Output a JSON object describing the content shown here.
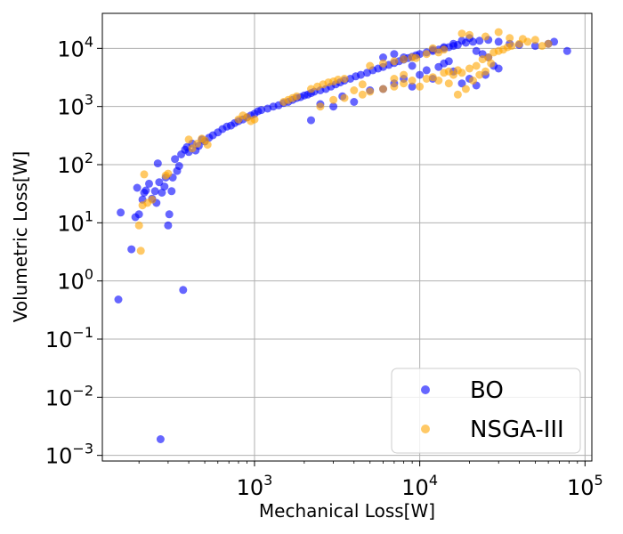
{
  "chart_data": {
    "type": "scatter",
    "xlabel": "Mechanical Loss[W]",
    "ylabel": "Volumetric Loss[W]",
    "xscale": "log",
    "yscale": "log",
    "xlim": [
      120,
      110000
    ],
    "ylim": [
      0.0008,
      40000
    ],
    "x_ticks": [
      1000,
      10000,
      100000
    ],
    "y_ticks": [
      0.001,
      0.01,
      0.1,
      1,
      10,
      100,
      1000,
      10000
    ],
    "grid": true,
    "legend_position": "lower-right",
    "series": [
      {
        "name": "BO",
        "color": "#0000ff",
        "points": [
          [
            150,
            0.48
          ],
          [
            155,
            15
          ],
          [
            180,
            3.5
          ],
          [
            190,
            12.5
          ],
          [
            195,
            40
          ],
          [
            200,
            14
          ],
          [
            210,
            25
          ],
          [
            215,
            33
          ],
          [
            220,
            36
          ],
          [
            230,
            47
          ],
          [
            240,
            26
          ],
          [
            250,
            35
          ],
          [
            255,
            22
          ],
          [
            260,
            105
          ],
          [
            265,
            50
          ],
          [
            270,
            0.0019
          ],
          [
            275,
            33
          ],
          [
            285,
            42
          ],
          [
            290,
            60
          ],
          [
            300,
            9
          ],
          [
            305,
            14
          ],
          [
            315,
            35
          ],
          [
            320,
            60
          ],
          [
            330,
            125
          ],
          [
            340,
            78
          ],
          [
            350,
            95
          ],
          [
            360,
            150
          ],
          [
            370,
            0.7
          ],
          [
            380,
            180
          ],
          [
            390,
            200
          ],
          [
            400,
            165
          ],
          [
            420,
            230
          ],
          [
            440,
            175
          ],
          [
            460,
            210
          ],
          [
            480,
            270
          ],
          [
            500,
            250
          ],
          [
            530,
            290
          ],
          [
            560,
            320
          ],
          [
            600,
            360
          ],
          [
            640,
            410
          ],
          [
            680,
            450
          ],
          [
            720,
            470
          ],
          [
            760,
            520
          ],
          [
            800,
            560
          ],
          [
            850,
            600
          ],
          [
            900,
            650
          ],
          [
            950,
            700
          ],
          [
            1000,
            750
          ],
          [
            1050,
            830
          ],
          [
            1100,
            870
          ],
          [
            1200,
            920
          ],
          [
            1300,
            1000
          ],
          [
            1400,
            1050
          ],
          [
            1500,
            1150
          ],
          [
            1600,
            1200
          ],
          [
            1700,
            1300
          ],
          [
            1800,
            1400
          ],
          [
            1900,
            1450
          ],
          [
            2000,
            1550
          ],
          [
            2100,
            1600
          ],
          [
            2200,
            1700
          ],
          [
            2300,
            1800
          ],
          [
            2500,
            1900
          ],
          [
            2700,
            2000
          ],
          [
            2900,
            2200
          ],
          [
            3100,
            2400
          ],
          [
            3300,
            2600
          ],
          [
            3500,
            2800
          ],
          [
            3800,
            3000
          ],
          [
            4100,
            3300
          ],
          [
            4400,
            3500
          ],
          [
            4800,
            3800
          ],
          [
            5200,
            4200
          ],
          [
            5600,
            4500
          ],
          [
            6000,
            4800
          ],
          [
            6500,
            5200
          ],
          [
            7000,
            5600
          ],
          [
            7500,
            6000
          ],
          [
            8000,
            6400
          ],
          [
            8500,
            6800
          ],
          [
            9000,
            7200
          ],
          [
            9500,
            7600
          ],
          [
            10000,
            8000
          ],
          [
            11000,
            8500
          ],
          [
            12000,
            9000
          ],
          [
            13000,
            9500
          ],
          [
            14000,
            10000
          ],
          [
            15000,
            10500
          ],
          [
            16000,
            11000
          ],
          [
            17000,
            11500
          ],
          [
            19000,
            12500
          ],
          [
            21000,
            13000
          ],
          [
            23000,
            13500
          ],
          [
            26000,
            14000
          ],
          [
            30000,
            13000
          ],
          [
            35000,
            12000
          ],
          [
            40000,
            11500
          ],
          [
            50000,
            11000
          ],
          [
            60000,
            12000
          ],
          [
            65000,
            13000
          ],
          [
            78000,
            9000
          ],
          [
            2200,
            580
          ],
          [
            2500,
            1100
          ],
          [
            3000,
            1000
          ],
          [
            3400,
            1500
          ],
          [
            4000,
            1200
          ],
          [
            5000,
            1900
          ],
          [
            6000,
            2000
          ],
          [
            7000,
            2500
          ],
          [
            8000,
            3000
          ],
          [
            9000,
            2200
          ],
          [
            10000,
            3500
          ],
          [
            11000,
            4200
          ],
          [
            12000,
            3000
          ],
          [
            13000,
            4800
          ],
          [
            14000,
            5500
          ],
          [
            15000,
            6000
          ],
          [
            16000,
            4000
          ],
          [
            18000,
            2500
          ],
          [
            20000,
            3000
          ],
          [
            22000,
            2300
          ],
          [
            25000,
            3500
          ],
          [
            28000,
            5000
          ],
          [
            30000,
            4500
          ],
          [
            12000,
            9500
          ],
          [
            14000,
            10500
          ],
          [
            16000,
            12000
          ],
          [
            18000,
            13500
          ],
          [
            20000,
            15000
          ],
          [
            22000,
            9000
          ],
          [
            24000,
            8000
          ],
          [
            26000,
            7000
          ],
          [
            9000,
            5000
          ],
          [
            8000,
            7000
          ],
          [
            7000,
            8000
          ],
          [
            6000,
            7000
          ]
        ]
      },
      {
        "name": "NSGA-III",
        "color": "#ffa500",
        "points": [
          [
            200,
            9
          ],
          [
            205,
            3.3
          ],
          [
            210,
            20
          ],
          [
            215,
            68
          ],
          [
            225,
            22
          ],
          [
            240,
            25
          ],
          [
            290,
            65
          ],
          [
            300,
            70
          ],
          [
            400,
            270
          ],
          [
            420,
            190
          ],
          [
            450,
            230
          ],
          [
            480,
            280
          ],
          [
            500,
            260
          ],
          [
            520,
            220
          ],
          [
            800,
            600
          ],
          [
            850,
            700
          ],
          [
            900,
            650
          ],
          [
            950,
            560
          ],
          [
            1000,
            600
          ],
          [
            1500,
            1200
          ],
          [
            1600,
            1300
          ],
          [
            1700,
            1400
          ],
          [
            1800,
            1500
          ],
          [
            2200,
            2000
          ],
          [
            2400,
            2200
          ],
          [
            2600,
            2400
          ],
          [
            2800,
            2600
          ],
          [
            3000,
            2700
          ],
          [
            3200,
            2900
          ],
          [
            3500,
            3000
          ],
          [
            3000,
            1300
          ],
          [
            4000,
            1900
          ],
          [
            4500,
            2400
          ],
          [
            5000,
            1800
          ],
          [
            6000,
            2000
          ],
          [
            7000,
            2200
          ],
          [
            8000,
            2500
          ],
          [
            9000,
            2800
          ],
          [
            10000,
            2200
          ],
          [
            11000,
            3000
          ],
          [
            12000,
            3200
          ],
          [
            13000,
            2800
          ],
          [
            14000,
            3800
          ],
          [
            15000,
            4000
          ],
          [
            16000,
            3500
          ],
          [
            17000,
            4200
          ],
          [
            18000,
            3800
          ],
          [
            20000,
            4500
          ],
          [
            22000,
            5000
          ],
          [
            24000,
            6500
          ],
          [
            26000,
            7000
          ],
          [
            28000,
            8500
          ],
          [
            30000,
            9000
          ],
          [
            32000,
            9500
          ],
          [
            34000,
            10500
          ],
          [
            36000,
            11000
          ],
          [
            40000,
            12000
          ],
          [
            45000,
            13000
          ],
          [
            50000,
            14000
          ],
          [
            55000,
            11000
          ],
          [
            60000,
            12000
          ],
          [
            18000,
            18000
          ],
          [
            20000,
            17000
          ],
          [
            25000,
            16000
          ],
          [
            30000,
            19000
          ],
          [
            35000,
            15000
          ],
          [
            42000,
            14500
          ],
          [
            15000,
            2500
          ],
          [
            17000,
            1600
          ],
          [
            19000,
            2000
          ],
          [
            21000,
            2800
          ],
          [
            23000,
            3500
          ],
          [
            25000,
            4000
          ],
          [
            27000,
            5500
          ],
          [
            11000,
            8000
          ],
          [
            12000,
            10000
          ],
          [
            13000,
            8500
          ],
          [
            14000,
            9500
          ],
          [
            5000,
            5000
          ],
          [
            6000,
            5500
          ],
          [
            7000,
            6000
          ],
          [
            8000,
            6500
          ],
          [
            9000,
            7000
          ],
          [
            9500,
            6800
          ],
          [
            7000,
            3000
          ],
          [
            8000,
            3500
          ],
          [
            2500,
            1000
          ],
          [
            3500,
            1400
          ],
          [
            4500,
            1600
          ]
        ]
      }
    ]
  }
}
